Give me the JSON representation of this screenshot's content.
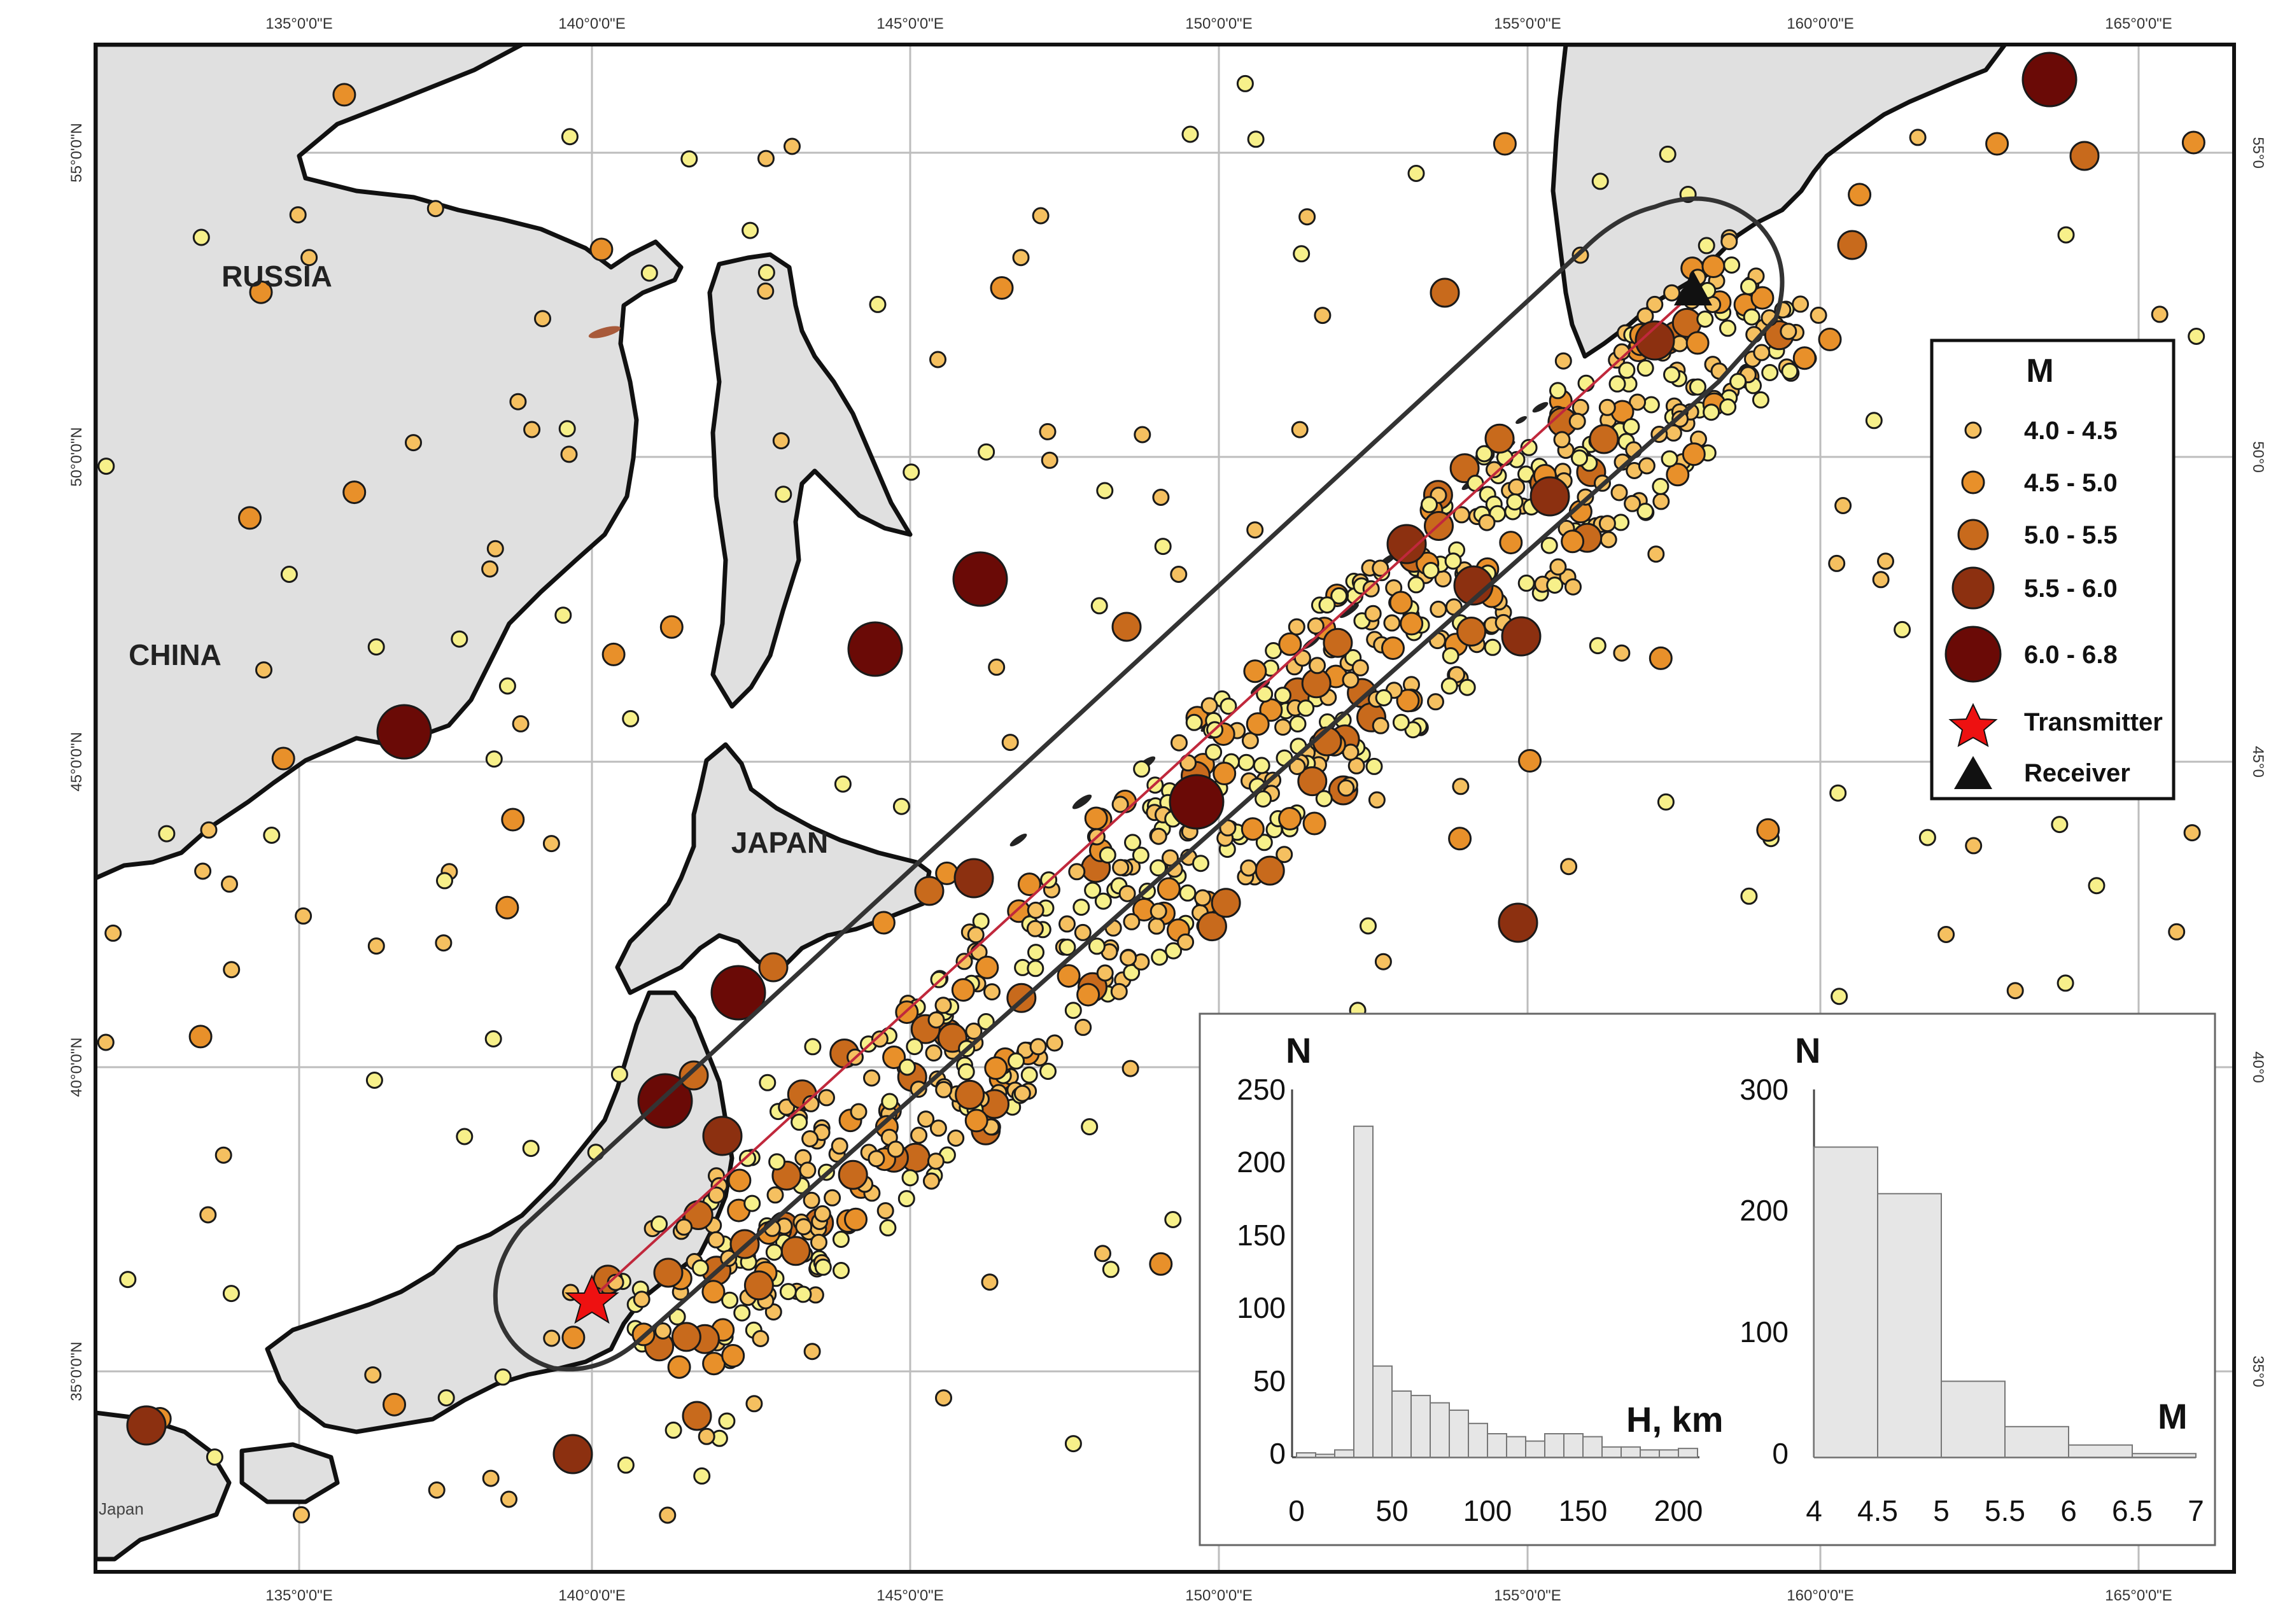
{
  "map": {
    "lon_ticks": [
      "135°0'0\"E",
      "140°0'0\"E",
      "145°0'0\"E",
      "150°0'0\"E",
      "155°0'0\"E",
      "160°0'0\"E",
      "165°0'0\"E"
    ],
    "lat_ticks_left": [
      "55°0'0\"N",
      "50°0'0\"N",
      "45°0'0\"N",
      "40°0'0\"N",
      "35°0'0\"N"
    ],
    "lat_ticks_right": [
      "55°0",
      "50°0",
      "45°0",
      "40°0",
      "35°0"
    ],
    "country_labels": {
      "russia": "RUSSIA",
      "china": "CHINA",
      "japan": "JAPAN",
      "japan_small": "Japan"
    },
    "colors": {
      "land": "#e0e0e0",
      "sea": "#ffffff",
      "grid": "#bdbdbd",
      "corridor": "#333333",
      "path_line": "#c0283c"
    }
  },
  "legend": {
    "title": "M",
    "items": [
      {
        "label": "4.0 - 4.5",
        "color": "#f5c060"
      },
      {
        "label": "4.5 - 5.0",
        "color": "#e8902a"
      },
      {
        "label": "5.0 - 5.5",
        "color": "#c86a1c"
      },
      {
        "label": "5.5 - 6.0",
        "color": "#8c3010"
      },
      {
        "label": "6.0 - 6.8",
        "color": "#6a0a06"
      }
    ],
    "transmitter_label": "Transmitter",
    "receiver_label": "Receiver",
    "transmitter_color": "#ee1111",
    "receiver_color": "#111111"
  },
  "histograms": {
    "depth": {
      "ylabel": "N",
      "xlabel": "H, km",
      "yticks": [
        "250",
        "200",
        "150",
        "100",
        "50",
        "0"
      ],
      "xticks": [
        "0",
        "50",
        "100",
        "150",
        "200"
      ]
    },
    "magnitude": {
      "ylabel": "N",
      "xlabel": "M",
      "yticks": [
        "300",
        "200",
        "100",
        "0"
      ],
      "xticks": [
        "4",
        "4.5",
        "5",
        "5.5",
        "6",
        "6.5",
        "7"
      ]
    }
  },
  "chart_data": [
    {
      "type": "bar",
      "title": "",
      "xlabel": "H, km",
      "ylabel": "N",
      "ylim": [
        0,
        250
      ],
      "xlim": [
        0,
        210
      ],
      "bin_width": 10,
      "bins_start": [
        0,
        10,
        20,
        30,
        40,
        50,
        60,
        70,
        80,
        90,
        100,
        110,
        120,
        130,
        140,
        150,
        160,
        170,
        180,
        190,
        200
      ],
      "values": [
        3,
        2,
        5,
        225,
        62,
        45,
        42,
        37,
        32,
        23,
        16,
        14,
        11,
        16,
        16,
        14,
        7,
        7,
        5,
        5,
        6
      ],
      "grid": false
    },
    {
      "type": "bar",
      "title": "",
      "xlabel": "M",
      "ylabel": "N",
      "ylim": [
        0,
        300
      ],
      "xlim": [
        4,
        7
      ],
      "bin_width": 0.5,
      "bins_start": [
        4,
        4.5,
        5,
        5.5,
        6,
        6.5
      ],
      "values": [
        253,
        215,
        62,
        25,
        10,
        3
      ],
      "grid": false
    }
  ]
}
